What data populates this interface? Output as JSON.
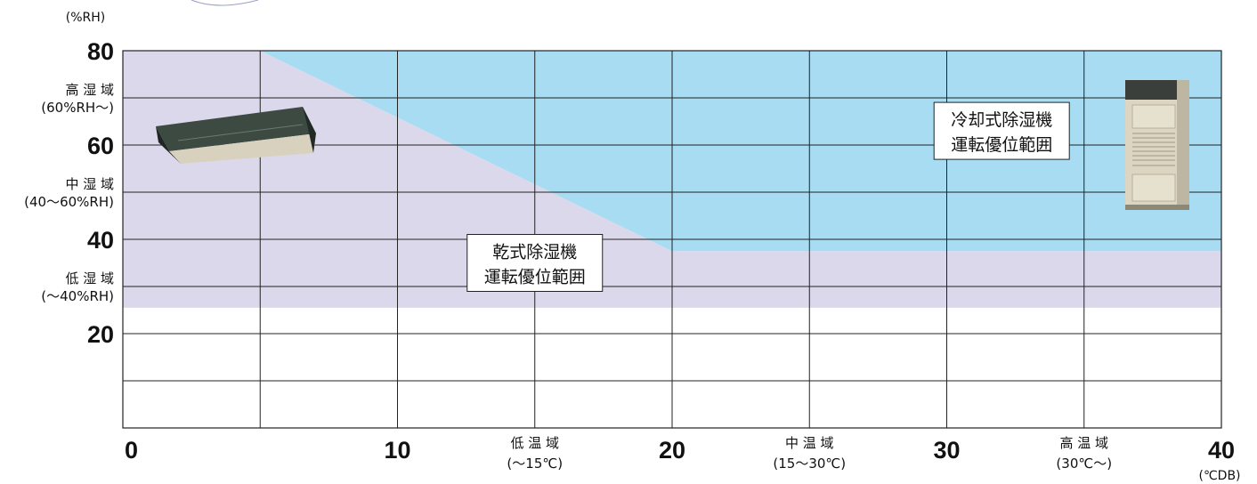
{
  "chart_data": {
    "type": "area",
    "xlabel": "(℃DB)",
    "ylabel": "(%RH)",
    "xlim": [
      0,
      40
    ],
    "ylim": [
      0,
      80
    ],
    "x_ticks": [
      {
        "value": 0,
        "label": "0"
      },
      {
        "value": 10,
        "label": "10"
      },
      {
        "value": 20,
        "label": "20"
      },
      {
        "value": 30,
        "label": "30"
      },
      {
        "value": 40,
        "label": "40"
      }
    ],
    "y_ticks": [
      {
        "value": 80,
        "label": "80"
      },
      {
        "value": 60,
        "label": "60"
      },
      {
        "value": 40,
        "label": "40"
      },
      {
        "value": 20,
        "label": "20"
      }
    ],
    "x_gridlines": [
      5,
      10,
      15,
      20,
      25,
      30,
      35
    ],
    "y_gridlines": [
      10,
      20,
      30,
      40,
      50,
      60,
      70
    ],
    "x_zone_labels": [
      {
        "x": 15,
        "line1": "低 温 域",
        "line2": "(〜15℃)"
      },
      {
        "x": 25,
        "line1": "中 温 域",
        "line2": "(15〜30℃)"
      },
      {
        "x": 35,
        "line1": "高 温 域",
        "line2": "(30℃〜)"
      }
    ],
    "y_zone_labels": [
      {
        "y": 70,
        "line1": "高 湿 域",
        "line2": "(60%RH〜)"
      },
      {
        "y": 50,
        "line1": "中 湿 域",
        "line2": "(40〜60%RH)"
      },
      {
        "y": 30,
        "line1": "低 湿 域",
        "line2": "(〜40%RH)"
      }
    ],
    "regions": [
      {
        "name": "乾式除湿機運転優位範囲",
        "label_line1": "乾式除湿機",
        "label_line2": "運転優位範囲",
        "label_at": [
          15,
          35
        ],
        "color": "#dcd8ec",
        "polygon": [
          [
            0,
            25.5
          ],
          [
            40,
            25.5
          ],
          [
            40,
            37.5
          ],
          [
            20,
            37.5
          ],
          [
            5,
            80
          ],
          [
            0,
            80
          ]
        ]
      },
      {
        "name": "冷却式除湿機運転優位範囲",
        "label_line1": "冷却式除湿機",
        "label_line2": "運転優位範囲",
        "label_at": [
          32,
          63
        ],
        "color": "#a8dcf2",
        "polygon": [
          [
            5,
            80
          ],
          [
            40,
            80
          ],
          [
            40,
            37.5
          ],
          [
            20,
            37.5
          ]
        ]
      }
    ],
    "grid": true
  },
  "icons": {
    "ceiling_unit": "ceiling-mounted-dehumidifier-icon",
    "floor_unit": "floor-standing-dehumidifier-icon"
  }
}
